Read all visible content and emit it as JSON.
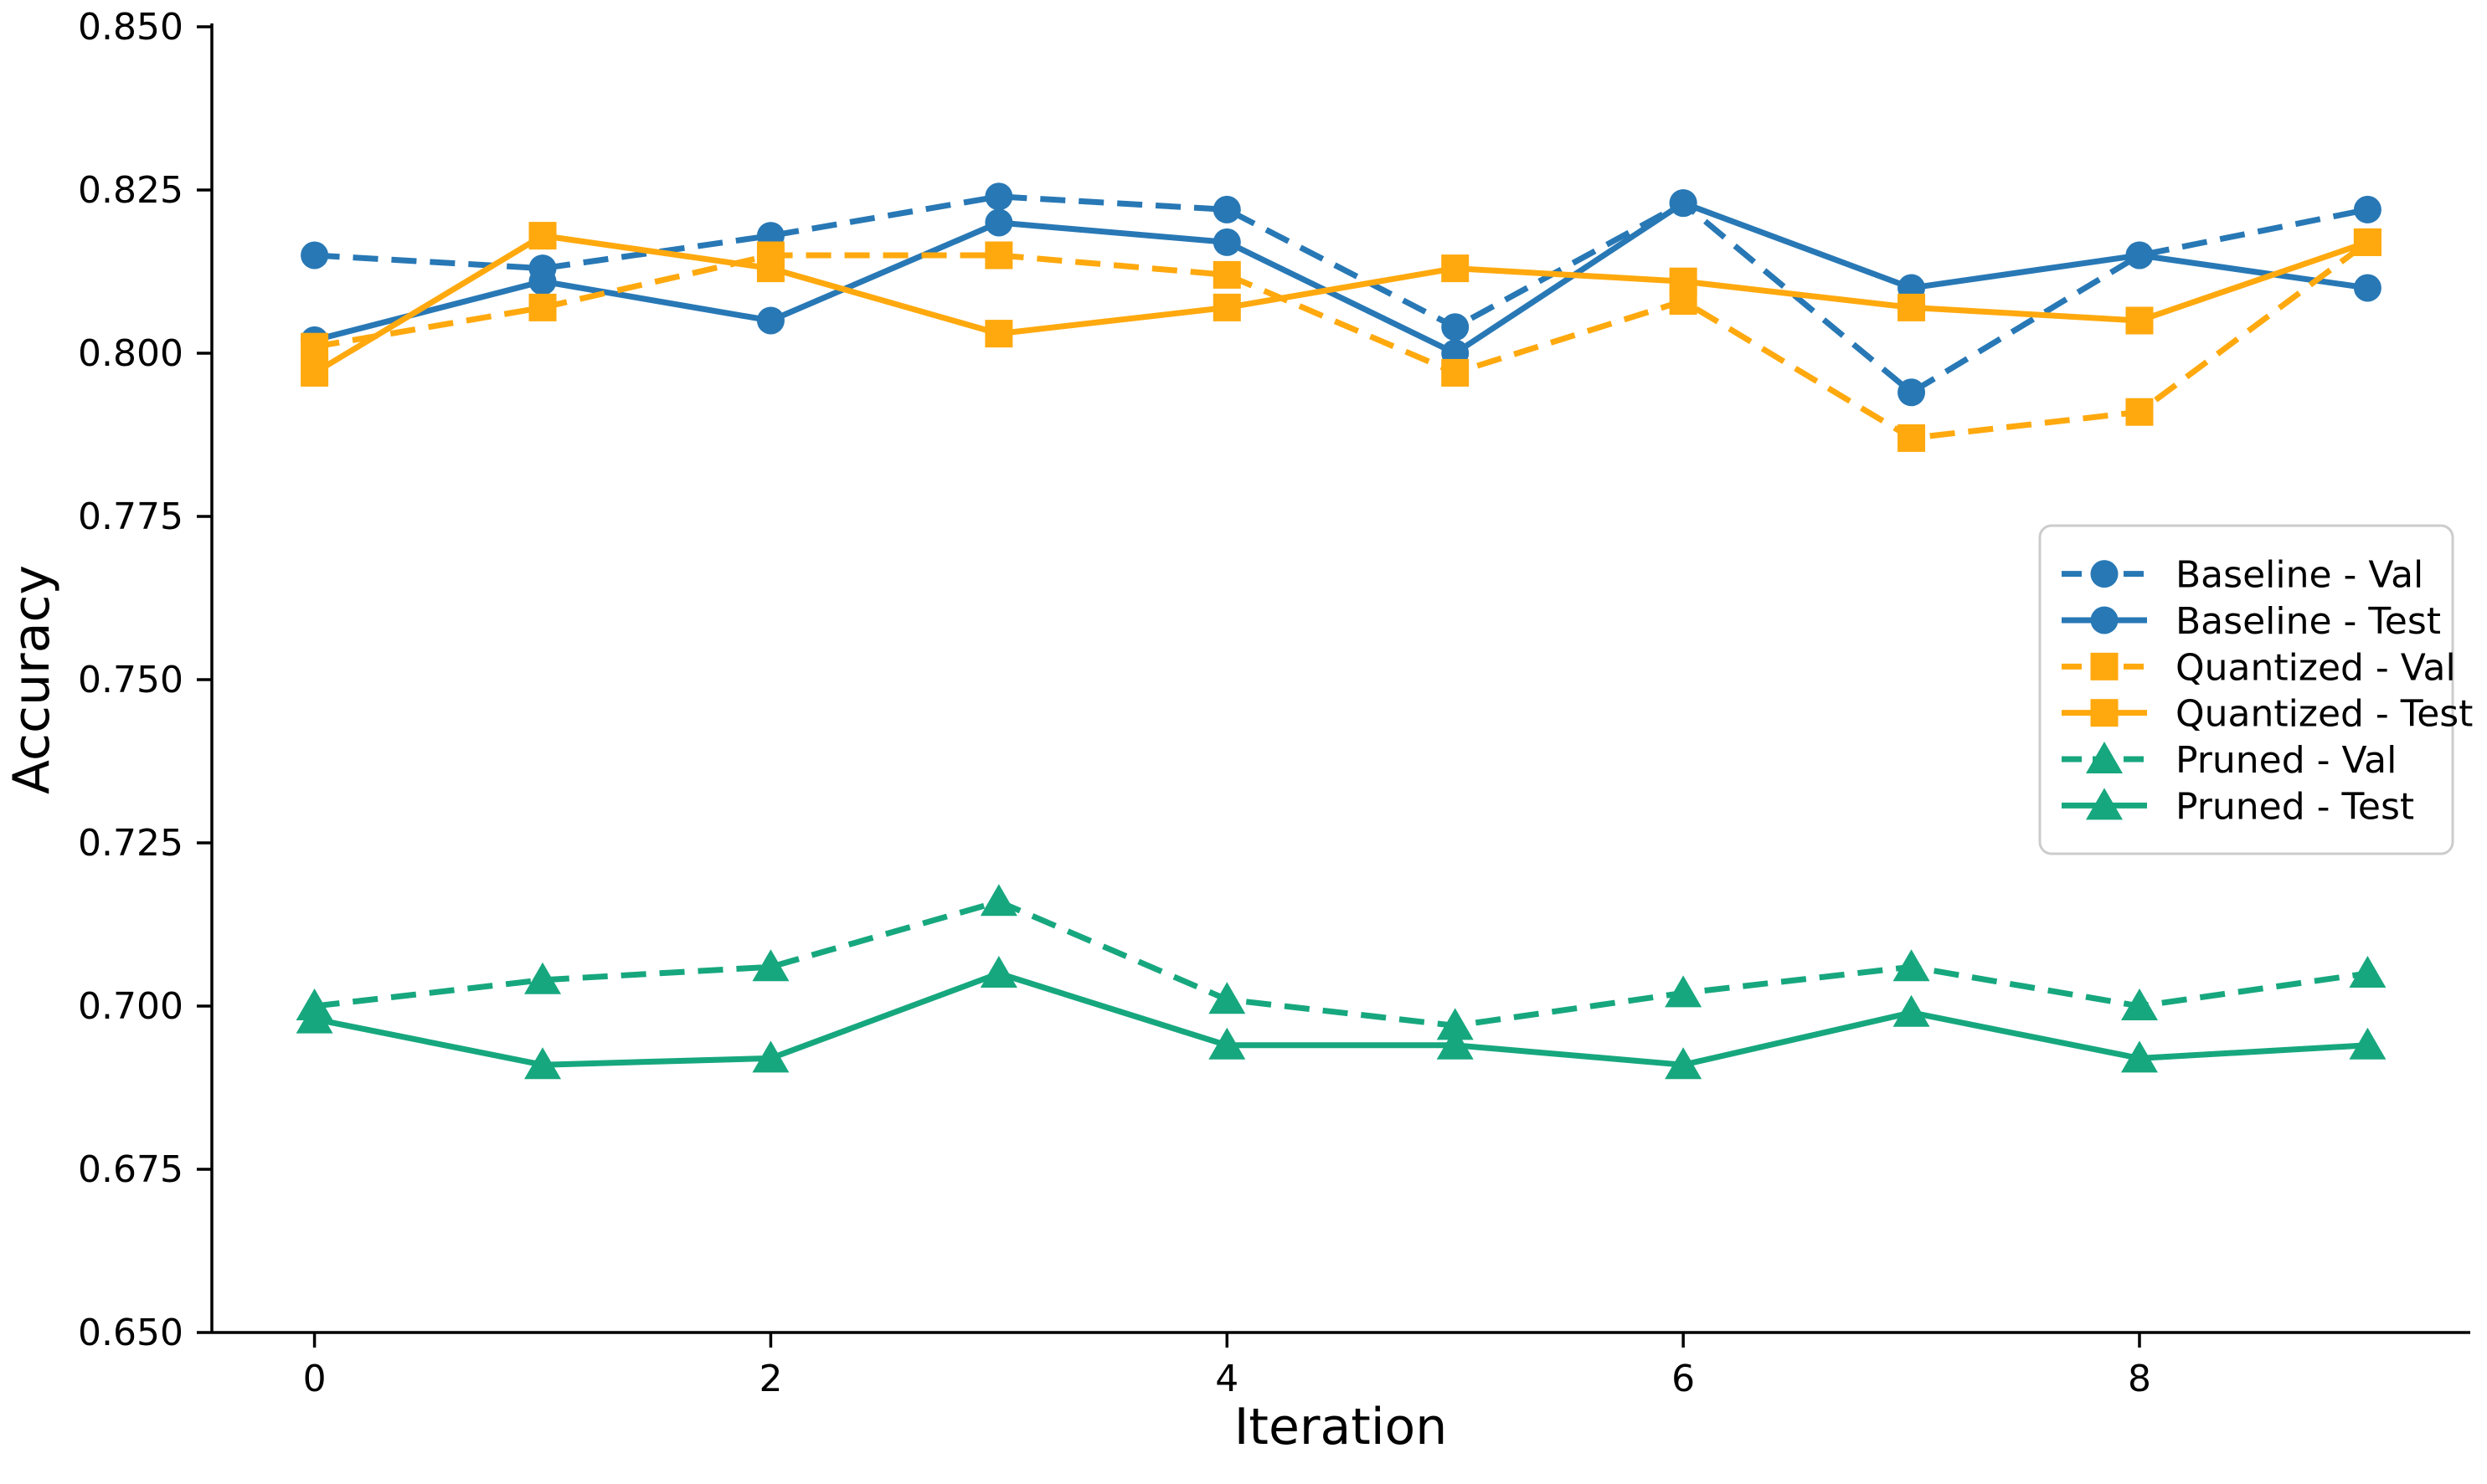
{
  "chart_data": {
    "type": "line",
    "title": "",
    "xlabel": "Iteration",
    "ylabel": "Accuracy",
    "x": [
      0,
      1,
      2,
      3,
      4,
      5,
      6,
      7,
      8,
      9
    ],
    "xlim": [
      -0.45,
      9.45
    ],
    "ylim": [
      0.65,
      0.85
    ],
    "x_ticks": [
      0,
      2,
      4,
      6,
      8
    ],
    "x_tick_labels": [
      "0",
      "2",
      "4",
      "6",
      "8"
    ],
    "y_ticks": [
      0.65,
      0.675,
      0.7,
      0.725,
      0.75,
      0.775,
      0.8,
      0.825,
      0.85
    ],
    "y_tick_labels": [
      "0.650",
      "0.675",
      "0.700",
      "0.725",
      "0.750",
      "0.775",
      "0.800",
      "0.825",
      "0.850"
    ],
    "grid": false,
    "spines": {
      "top": false,
      "right": false,
      "left": true,
      "bottom": true
    },
    "legend_position": "center-right",
    "series": [
      {
        "name": "Baseline - Val",
        "color": "#2878B5",
        "line_style": "dashed",
        "marker": "circle",
        "values": [
          0.815,
          0.813,
          0.818,
          0.824,
          0.822,
          0.804,
          0.823,
          0.794,
          0.815,
          0.822
        ]
      },
      {
        "name": "Baseline - Test",
        "color": "#2878B5",
        "line_style": "solid",
        "marker": "circle",
        "values": [
          0.802,
          0.811,
          0.805,
          0.82,
          0.817,
          0.8,
          0.823,
          0.81,
          0.815,
          0.81
        ]
      },
      {
        "name": "Quantized - Val",
        "color": "#FFA90E",
        "line_style": "dashed",
        "marker": "square",
        "values": [
          0.801,
          0.807,
          0.815,
          0.815,
          0.812,
          0.797,
          0.808,
          0.787,
          0.791,
          0.817
        ]
      },
      {
        "name": "Quantized - Test",
        "color": "#FFA90E",
        "line_style": "solid",
        "marker": "square",
        "values": [
          0.797,
          0.818,
          0.813,
          0.803,
          0.807,
          0.813,
          0.811,
          0.807,
          0.805,
          0.817
        ]
      },
      {
        "name": "Pruned - Val",
        "color": "#17A77E",
        "line_style": "dashed",
        "marker": "triangle",
        "values": [
          0.7,
          0.704,
          0.706,
          0.716,
          0.701,
          0.697,
          0.702,
          0.706,
          0.7,
          0.705
        ]
      },
      {
        "name": "Pruned - Test",
        "color": "#17A77E",
        "line_style": "solid",
        "marker": "triangle",
        "values": [
          0.698,
          0.691,
          0.692,
          0.705,
          0.694,
          0.694,
          0.691,
          0.699,
          0.692,
          0.694
        ]
      }
    ]
  }
}
